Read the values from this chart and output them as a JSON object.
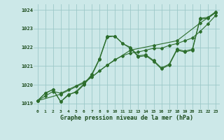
{
  "bg_color": "#cce8e8",
  "grid_color": "#9dc8c8",
  "line_color": "#2d6e2d",
  "title": "Graphe pression niveau de la mer (hPa)",
  "xlim": [
    -0.5,
    23.5
  ],
  "ylim": [
    1018.7,
    1024.3
  ],
  "yticks": [
    1019,
    1020,
    1021,
    1022,
    1023,
    1024
  ],
  "xticks": [
    0,
    1,
    2,
    3,
    4,
    5,
    6,
    7,
    8,
    9,
    10,
    11,
    12,
    13,
    14,
    15,
    16,
    17,
    18,
    19,
    20,
    21,
    22,
    23
  ],
  "series": [
    {
      "x": [
        0,
        1,
        2,
        3,
        4,
        5,
        6,
        7,
        8,
        9,
        10,
        11,
        12,
        13,
        14,
        15,
        16,
        17,
        18,
        19,
        20,
        21,
        22,
        23
      ],
      "y": [
        1019.15,
        1019.55,
        1019.75,
        1019.1,
        1019.5,
        1019.6,
        1020.0,
        1020.5,
        1021.35,
        1022.55,
        1022.6,
        1022.2,
        1021.95,
        1021.5,
        1021.55,
        1021.25,
        1020.85,
        1021.05,
        1021.85,
        1021.75,
        1021.85,
        1023.5,
        1023.55,
        1023.85
      ]
    },
    {
      "x": [
        0,
        1,
        2,
        3,
        4,
        5,
        6,
        7,
        8,
        9,
        10,
        11,
        12,
        13,
        14,
        15,
        16,
        17,
        18,
        19,
        20,
        21,
        22,
        23
      ],
      "y": [
        1019.15,
        1019.55,
        1019.75,
        1019.1,
        1019.45,
        1019.65,
        1020.05,
        1020.55,
        1021.4,
        1022.6,
        1022.6,
        1022.2,
        1022.0,
        1021.55,
        1021.6,
        1021.3,
        1020.9,
        1021.1,
        1021.9,
        1021.8,
        1021.9,
        1023.55,
        1023.6,
        1023.9
      ]
    },
    {
      "x": [
        0,
        1,
        2,
        3,
        4,
        5,
        6,
        7,
        8,
        9,
        10,
        11,
        12,
        13,
        14,
        15,
        16,
        17,
        18,
        19,
        20,
        21,
        22,
        23
      ],
      "y": [
        1019.15,
        1019.4,
        1019.65,
        1019.55,
        1019.75,
        1019.95,
        1020.15,
        1020.4,
        1020.75,
        1021.05,
        1021.35,
        1021.55,
        1021.7,
        1021.75,
        1021.85,
        1021.95,
        1021.95,
        1022.1,
        1022.2,
        1022.35,
        1022.5,
        1022.85,
        1023.25,
        1023.7
      ]
    },
    {
      "x": [
        0,
        3,
        6,
        9,
        12,
        15,
        18,
        21,
        23
      ],
      "y": [
        1019.15,
        1019.5,
        1020.1,
        1021.05,
        1021.85,
        1022.1,
        1022.35,
        1023.3,
        1023.85
      ]
    }
  ]
}
